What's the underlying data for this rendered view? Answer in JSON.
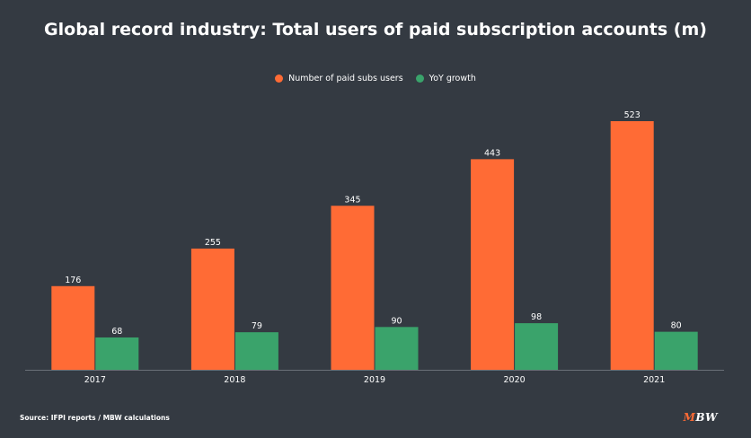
{
  "title": "Global record industry: Total users of paid subscription accounts (m)",
  "colors": {
    "background": "#343a42",
    "series1": "#ff6b35",
    "series2": "#3aa36b",
    "axis": "#6a7078"
  },
  "legend": {
    "series1_label": "Number of paid subs users",
    "series2_label": "YoY growth"
  },
  "source": "Source: IFPI reports / MBW calculations",
  "logo": {
    "m": "M",
    "bw": "BW"
  },
  "chart_data": {
    "type": "bar",
    "categories": [
      "2017",
      "2018",
      "2019",
      "2020",
      "2021"
    ],
    "series": [
      {
        "name": "Number of paid subs users",
        "values": [
          176,
          255,
          345,
          443,
          523
        ]
      },
      {
        "name": "YoY growth",
        "values": [
          68,
          79,
          90,
          98,
          80
        ]
      }
    ],
    "title": "Global record industry: Total users of paid subscription accounts (m)",
    "ylim": [
      0,
      523
    ],
    "grid": false,
    "legend_position": "top-center",
    "data_labels": true
  }
}
